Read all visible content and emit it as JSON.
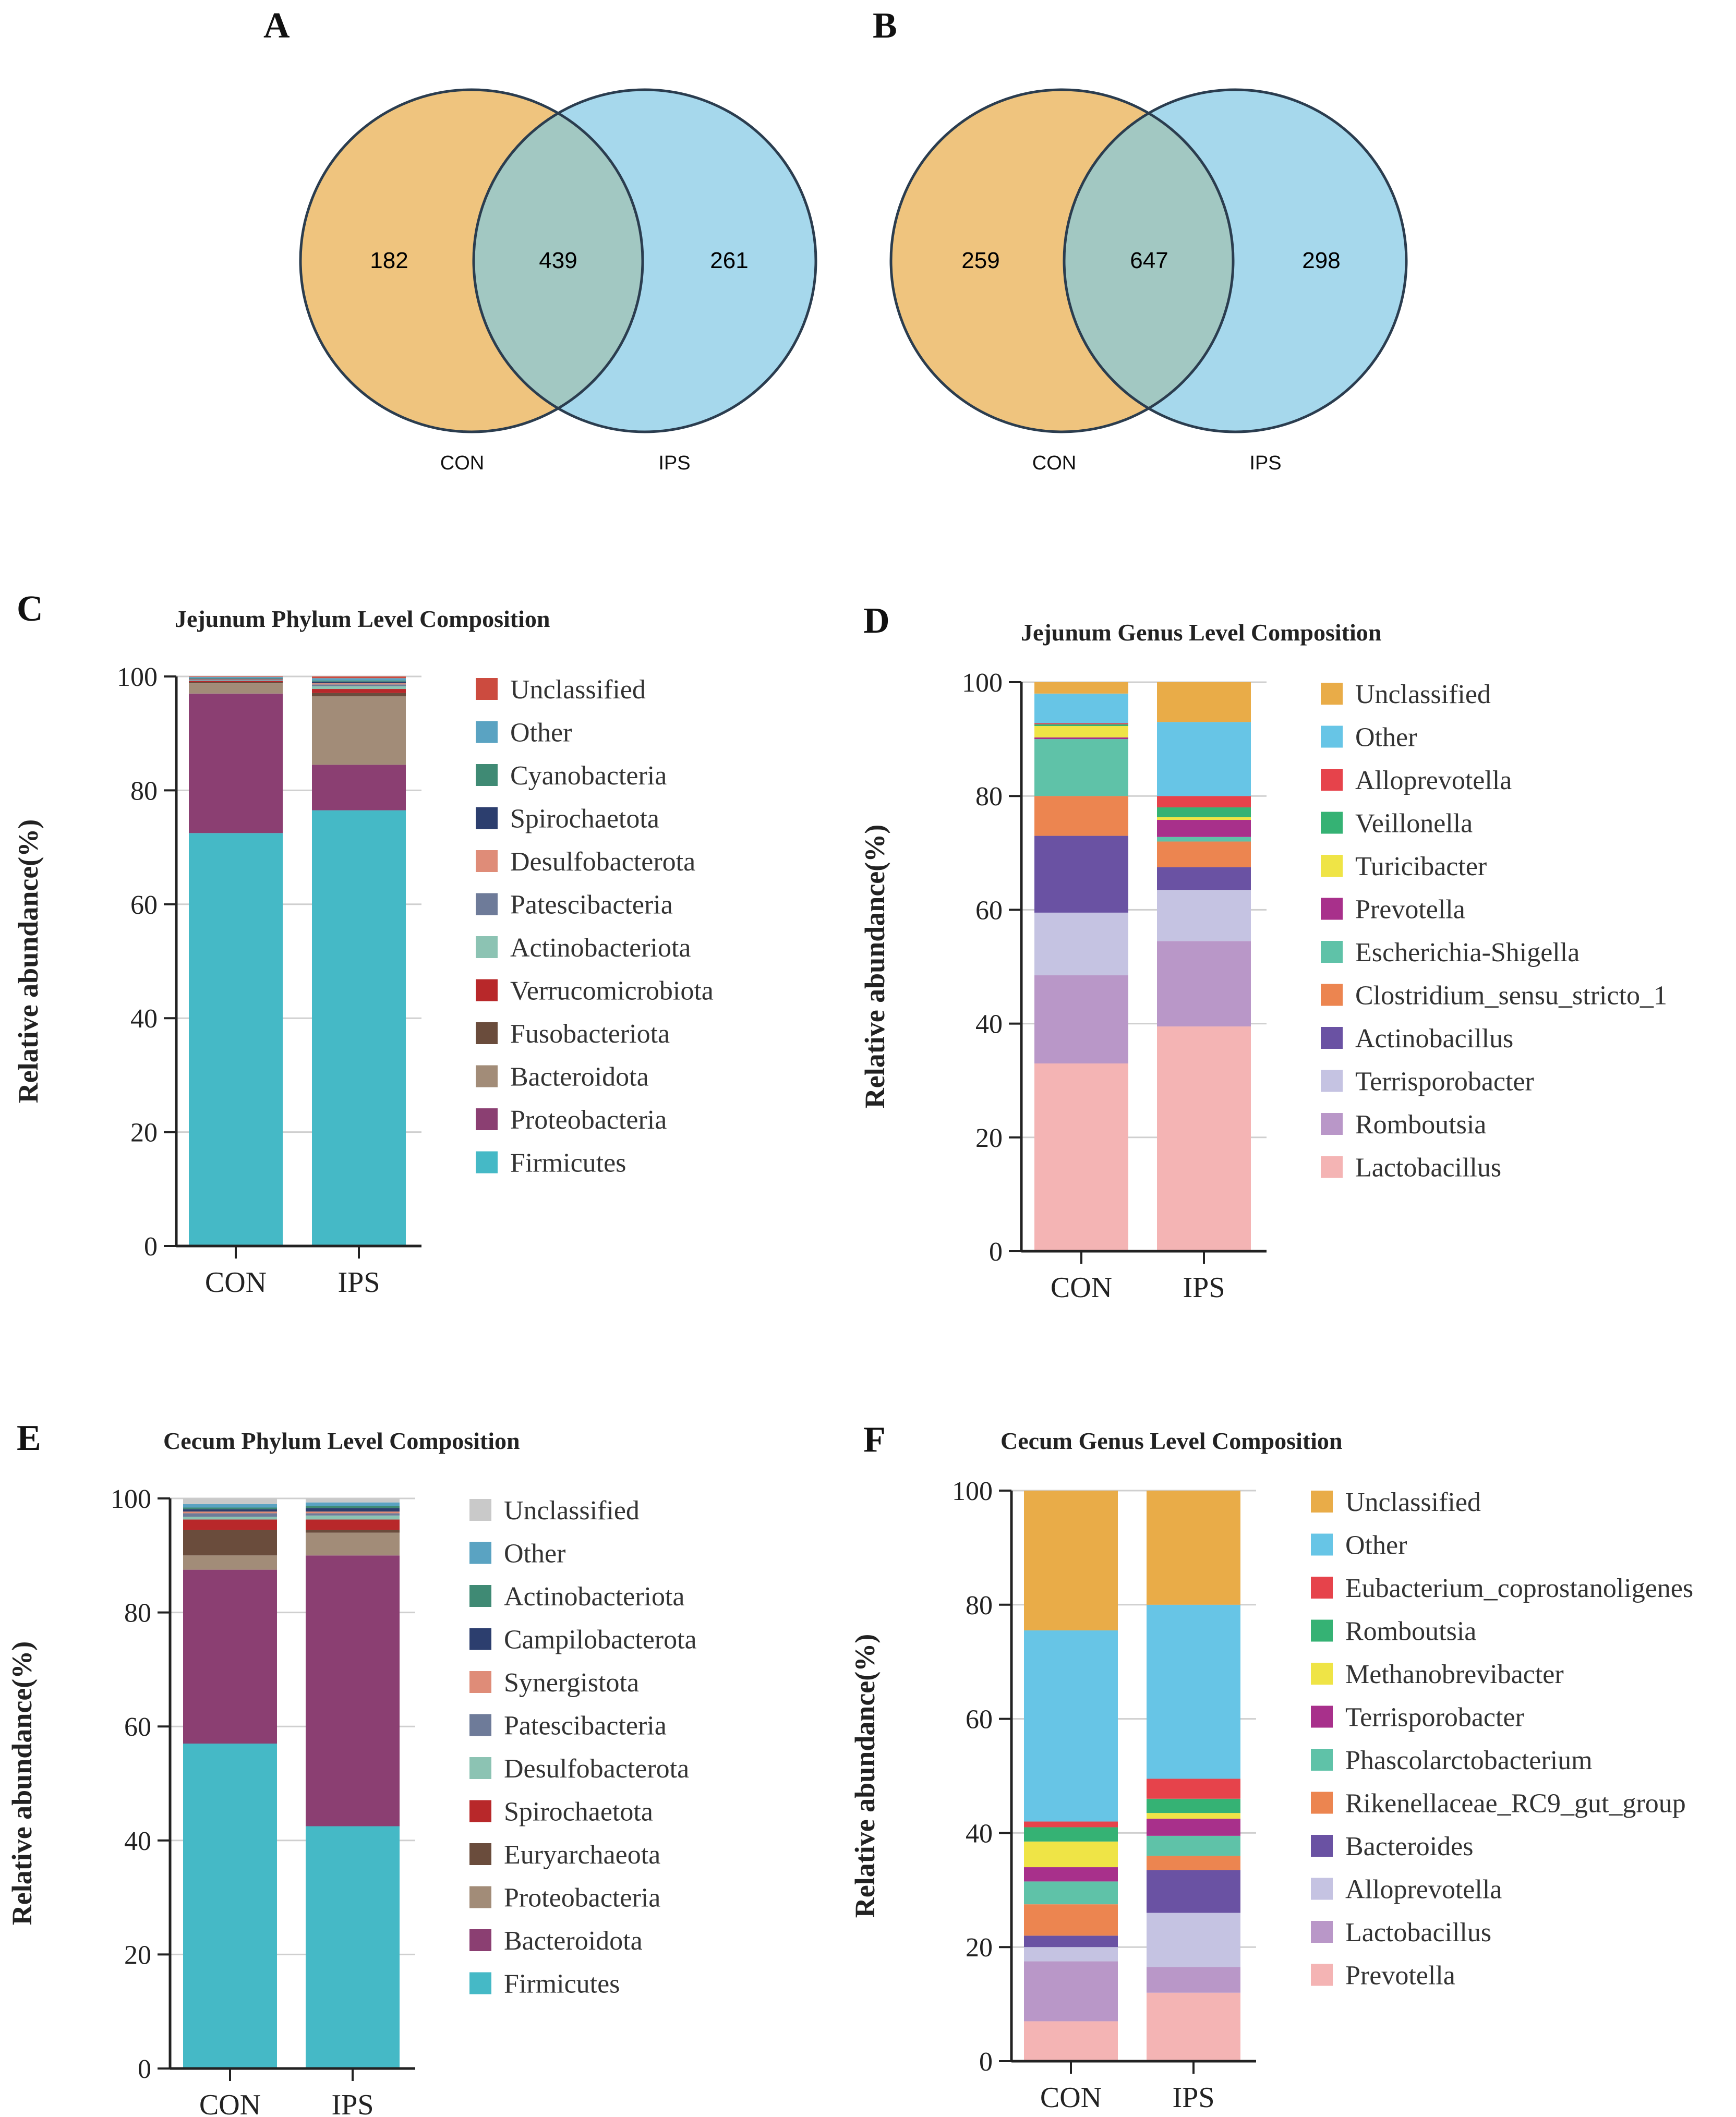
{
  "panels": {
    "A": "A",
    "B": "B",
    "C": "C",
    "D": "D",
    "E": "E",
    "F": "F"
  },
  "venn": [
    {
      "left_label": "CON",
      "right_label": "IPS",
      "left_only": "182",
      "shared": "439",
      "right_only": "261"
    },
    {
      "left_label": "CON",
      "right_label": "IPS",
      "left_only": "259",
      "shared": "647",
      "right_only": "298"
    }
  ],
  "colors": {
    "venn_left": "#efc47e",
    "venn_right": "#a6d8ec",
    "venn_overlap": "#a2c8c2",
    "venn_stroke": "#2b3d4f"
  },
  "chart_data": [
    {
      "type": "bar",
      "stacked": true,
      "title": "Jejunum Phylum  Level Composition",
      "ylabel": "Relative abundance(%)",
      "xlabel": "",
      "ylim": [
        0,
        100
      ],
      "yticks": [
        0,
        20,
        40,
        60,
        80,
        100
      ],
      "categories": [
        "CON",
        "IPS"
      ],
      "series": [
        {
          "name": "Firmicutes",
          "color": "#45b9c6",
          "values": [
            72.5,
            76.5
          ]
        },
        {
          "name": "Proteobacteria",
          "color": "#8b3f72",
          "values": [
            24.5,
            8.0
          ]
        },
        {
          "name": "Bacteroidota",
          "color": "#a28c78",
          "values": [
            1.8,
            12.0
          ]
        },
        {
          "name": "Fusobacteriota",
          "color": "#6a4c3c",
          "values": [
            0.2,
            0.6
          ]
        },
        {
          "name": "Verrucomicrobiota",
          "color": "#b8282a",
          "values": [
            0.2,
            0.7
          ]
        },
        {
          "name": "Actinobacteriota",
          "color": "#8cc3b3",
          "values": [
            0.1,
            0.5
          ]
        },
        {
          "name": "Patescibacteria",
          "color": "#6e7b99",
          "values": [
            0.1,
            0.3
          ]
        },
        {
          "name": "Desulfobacterota",
          "color": "#df8c78",
          "values": [
            0.1,
            0.2
          ]
        },
        {
          "name": "Spirochaetota",
          "color": "#2c3e6e",
          "values": [
            0.1,
            0.3
          ]
        },
        {
          "name": "Cyanobacteria",
          "color": "#3f8a74",
          "values": [
            0.1,
            0.2
          ]
        },
        {
          "name": "Other",
          "color": "#5aa3c2",
          "values": [
            0.2,
            0.4
          ]
        },
        {
          "name": "Unclassified",
          "color": "#cc4b3f",
          "values": [
            0.1,
            0.3
          ]
        }
      ]
    },
    {
      "type": "bar",
      "stacked": true,
      "title": "Jejunum Genus Level Composition",
      "ylabel": "Relative abundance(%)",
      "xlabel": "",
      "ylim": [
        0,
        100
      ],
      "yticks": [
        0,
        20,
        40,
        60,
        80,
        100
      ],
      "categories": [
        "CON",
        "IPS"
      ],
      "series": [
        {
          "name": "Lactobacillus",
          "color": "#f4b4b4",
          "values": [
            33.0,
            39.5
          ]
        },
        {
          "name": "Romboutsia",
          "color": "#b997c8",
          "values": [
            15.5,
            15.0
          ]
        },
        {
          "name": "Terrisporobacter",
          "color": "#c5c3e2",
          "values": [
            11.0,
            9.0
          ]
        },
        {
          "name": "Actinobacillus",
          "color": "#6a52a3",
          "values": [
            13.5,
            4.0
          ]
        },
        {
          "name": "Clostridium_sensu_stricto_1",
          "color": "#ec8550",
          "values": [
            7.0,
            4.5
          ]
        },
        {
          "name": "Escherichia-Shigella",
          "color": "#5fc2a8",
          "values": [
            10.0,
            0.8
          ]
        },
        {
          "name": "Prevotella",
          "color": "#a8308b",
          "values": [
            0.3,
            3.0
          ]
        },
        {
          "name": "Turicibacter",
          "color": "#efe446",
          "values": [
            2.0,
            0.5
          ]
        },
        {
          "name": "Veillonella",
          "color": "#35b274",
          "values": [
            0.3,
            1.7
          ]
        },
        {
          "name": "Alloprevotella",
          "color": "#e6434b",
          "values": [
            0.2,
            2.0
          ]
        },
        {
          "name": "Other",
          "color": "#67c5e6",
          "values": [
            5.2,
            13.0
          ]
        },
        {
          "name": "Unclassified",
          "color": "#e9ac48",
          "values": [
            2.0,
            7.0
          ]
        }
      ]
    },
    {
      "type": "bar",
      "stacked": true,
      "title": "Cecum Phylum Level Composition",
      "ylabel": "Relative abundance(%)",
      "xlabel": "",
      "ylim": [
        0,
        100
      ],
      "yticks": [
        0,
        20,
        40,
        60,
        80,
        100
      ],
      "categories": [
        "CON",
        "IPS"
      ],
      "series": [
        {
          "name": "Firmicutes",
          "color": "#45b9c6",
          "values": [
            57.0,
            42.5
          ]
        },
        {
          "name": "Bacteroidota",
          "color": "#8b3f72",
          "values": [
            30.5,
            47.5
          ]
        },
        {
          "name": "Proteobacteria",
          "color": "#a28c78",
          "values": [
            2.5,
            4.0
          ]
        },
        {
          "name": "Euryarchaeota",
          "color": "#6a4c3c",
          "values": [
            4.5,
            0.5
          ]
        },
        {
          "name": "Spirochaetota",
          "color": "#b8282a",
          "values": [
            1.8,
            1.8
          ]
        },
        {
          "name": "Desulfobacterota",
          "color": "#8cc3b3",
          "values": [
            0.5,
            0.7
          ]
        },
        {
          "name": "Patescibacteria",
          "color": "#6e7b99",
          "values": [
            0.6,
            0.4
          ]
        },
        {
          "name": "Synergistota",
          "color": "#df8c78",
          "values": [
            0.3,
            0.3
          ]
        },
        {
          "name": "Campilobacterota",
          "color": "#2c3e6e",
          "values": [
            0.4,
            0.6
          ]
        },
        {
          "name": "Actinobacteriota",
          "color": "#3f8a74",
          "values": [
            0.3,
            0.4
          ]
        },
        {
          "name": "Other",
          "color": "#5aa3c2",
          "values": [
            0.6,
            0.6
          ]
        },
        {
          "name": "Unclassified",
          "color": "#c9c9c9",
          "values": [
            1.0,
            0.7
          ]
        }
      ]
    },
    {
      "type": "bar",
      "stacked": true,
      "title": "Cecum Genus Level Composition",
      "ylabel": "Relative abundance(%)",
      "xlabel": "",
      "ylim": [
        0,
        100
      ],
      "yticks": [
        0,
        20,
        40,
        60,
        80,
        100
      ],
      "categories": [
        "CON",
        "IPS"
      ],
      "series": [
        {
          "name": "Prevotella",
          "color": "#f4b4b4",
          "values": [
            7.0,
            12.0
          ]
        },
        {
          "name": "Lactobacillus",
          "color": "#b997c8",
          "values": [
            10.5,
            4.5
          ]
        },
        {
          "name": "Alloprevotella",
          "color": "#c5c3e2",
          "values": [
            2.5,
            9.5
          ]
        },
        {
          "name": "Bacteroides",
          "color": "#6a52a3",
          "values": [
            2.0,
            7.5
          ]
        },
        {
          "name": "Rikenellaceae_RC9_gut_group",
          "color": "#ec8550",
          "values": [
            5.5,
            2.5
          ]
        },
        {
          "name": "Phascolarctobacterium",
          "color": "#5fc2a8",
          "values": [
            4.0,
            3.5
          ]
        },
        {
          "name": "Terrisporobacter",
          "color": "#a8308b",
          "values": [
            2.5,
            3.0
          ]
        },
        {
          "name": "Methanobrevibacter",
          "color": "#efe446",
          "values": [
            4.5,
            1.0
          ]
        },
        {
          "name": "Romboutsia",
          "color": "#35b274",
          "values": [
            2.5,
            2.5
          ]
        },
        {
          "name": "Eubacterium_coprostanoligenes",
          "color": "#e6434b",
          "values": [
            1.0,
            3.5
          ]
        },
        {
          "name": "Other",
          "color": "#67c5e6",
          "values": [
            33.5,
            30.5
          ]
        },
        {
          "name": "Unclassified",
          "color": "#e9ac48",
          "values": [
            24.5,
            20.0
          ]
        }
      ]
    }
  ]
}
